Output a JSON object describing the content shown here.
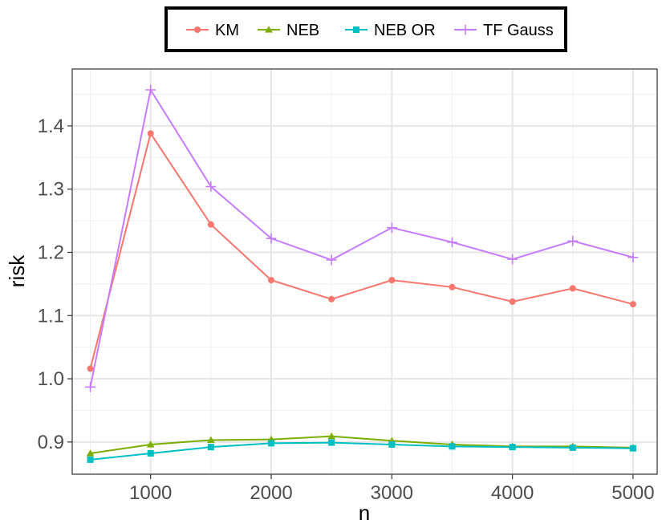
{
  "chart_data": {
    "type": "line",
    "xlabel": "n",
    "ylabel": "risk",
    "x": [
      500,
      1000,
      1500,
      2000,
      2500,
      3000,
      3500,
      4000,
      4500,
      5000
    ],
    "xlim": [
      350,
      5200
    ],
    "ylim": [
      0.849,
      1.49
    ],
    "x_ticks": [
      1000,
      2000,
      3000,
      4000,
      5000
    ],
    "y_ticks": [
      0.9,
      1.0,
      1.1,
      1.2,
      1.3,
      1.4
    ],
    "x_tick_labels": [
      "1000",
      "2000",
      "3000",
      "4000",
      "5000"
    ],
    "y_tick_labels": [
      "0.9",
      "1.0",
      "1.1",
      "1.2",
      "1.3",
      "1.4"
    ],
    "grid": true,
    "legend_position": "top",
    "series": [
      {
        "name": "KM",
        "color": "#F8766D",
        "marker": "circle",
        "values": [
          1.016,
          1.388,
          1.244,
          1.156,
          1.126,
          1.156,
          1.145,
          1.122,
          1.143,
          1.118
        ]
      },
      {
        "name": "NEB",
        "color": "#7CAE00",
        "marker": "triangle",
        "values": [
          0.882,
          0.896,
          0.903,
          0.904,
          0.909,
          0.902,
          0.896,
          0.893,
          0.893,
          0.891
        ]
      },
      {
        "name": "NEB OR",
        "color": "#00BFC4",
        "marker": "square",
        "values": [
          0.872,
          0.882,
          0.892,
          0.898,
          0.899,
          0.896,
          0.893,
          0.892,
          0.891,
          0.89
        ]
      },
      {
        "name": "TF Gauss",
        "color": "#C77CFF",
        "marker": "plus",
        "values": [
          0.987,
          1.457,
          1.304,
          1.222,
          1.188,
          1.239,
          1.216,
          1.189,
          1.218,
          1.192
        ]
      }
    ]
  }
}
